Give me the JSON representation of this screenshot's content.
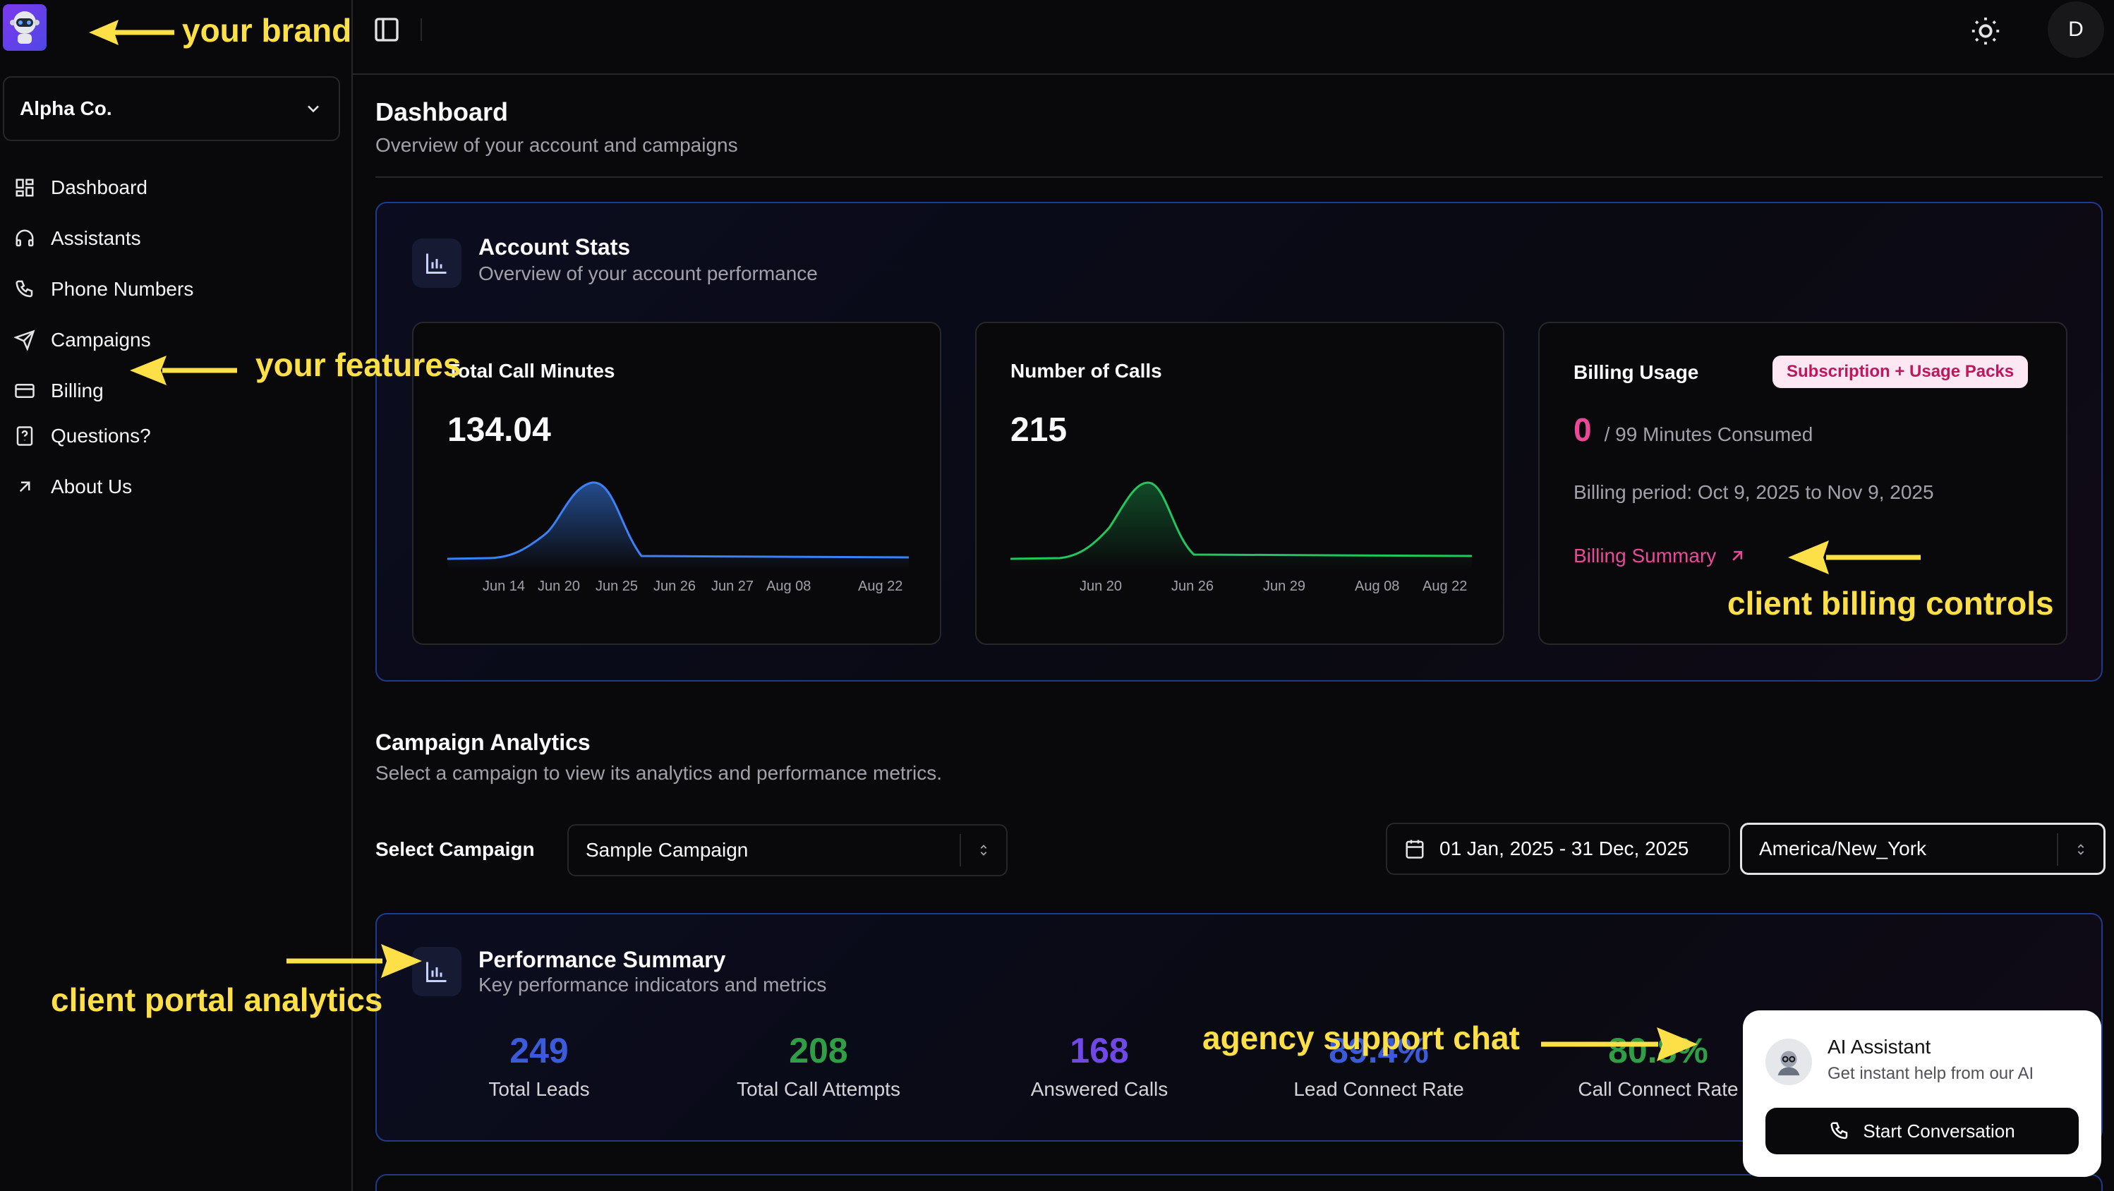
{
  "sidebar": {
    "org_name": "Alpha Co.",
    "items": [
      {
        "label": "Dashboard",
        "icon": "grid-icon"
      },
      {
        "label": "Assistants",
        "icon": "headset-icon"
      },
      {
        "label": "Phone Numbers",
        "icon": "phone-icon"
      },
      {
        "label": "Campaigns",
        "icon": "send-icon"
      },
      {
        "label": "Billing",
        "icon": "credit-card-icon"
      },
      {
        "label": "Questions?",
        "icon": "help-file-icon"
      },
      {
        "label": "About Us",
        "icon": "arrow-up-right-icon"
      }
    ]
  },
  "topbar": {
    "avatar_initial": "D"
  },
  "page": {
    "title": "Dashboard",
    "subtitle": "Overview of your account and campaigns"
  },
  "account_stats": {
    "title": "Account Stats",
    "subtitle": "Overview of your account performance",
    "total_call_minutes": {
      "title": "Total Call Minutes",
      "value": "134.04",
      "ticks": [
        "Jun 14",
        "Jun 20",
        "Jun 25",
        "Jun 26",
        "Jun 27",
        "Aug 08",
        "Aug 22"
      ],
      "color": "#3b82f6"
    },
    "number_of_calls": {
      "title": "Number of Calls",
      "value": "215",
      "ticks": [
        "Jun 20",
        "Jun 26",
        "Jun 29",
        "Aug 08",
        "Aug 22"
      ],
      "color": "#22c55e"
    },
    "billing_usage": {
      "title": "Billing Usage",
      "badge": "Subscription + Usage Packs",
      "consumed": "0",
      "consumed_suffix": "/ 99 Minutes Consumed",
      "period": "Billing period: Oct 9, 2025 to Nov 9, 2025",
      "summary_link": "Billing Summary"
    }
  },
  "campaign_analytics": {
    "title": "Campaign Analytics",
    "subtitle": "Select a campaign to view its analytics and performance metrics.",
    "select_label": "Select Campaign",
    "selected_campaign": "Sample Campaign",
    "date_range": "01 Jan, 2025 - 31 Dec, 2025",
    "timezone": "America/New_York"
  },
  "performance_summary": {
    "title": "Performance Summary",
    "subtitle": "Key performance indicators and metrics",
    "metrics": [
      {
        "value": "249",
        "label": "Total Leads",
        "color": "#3b5bdb"
      },
      {
        "value": "208",
        "label": "Total Call Attempts",
        "color": "#2f9e44"
      },
      {
        "value": "168",
        "label": "Answered Calls",
        "color": "#7048e8"
      },
      {
        "value": "89.4%",
        "label": "Lead Connect Rate",
        "color": "#3b5bdb"
      },
      {
        "value": "80.8%",
        "label": "Call Connect Rate",
        "color": "#2f9e44"
      }
    ]
  },
  "chat_widget": {
    "title": "AI Assistant",
    "subtitle": "Get instant help from our AI",
    "button": "Start Conversation"
  },
  "annotations": {
    "brand": "your brand",
    "features": "your features",
    "billing": "client billing controls",
    "analytics": "client portal analytics",
    "support": "agency support chat",
    "color": "#fde047"
  }
}
